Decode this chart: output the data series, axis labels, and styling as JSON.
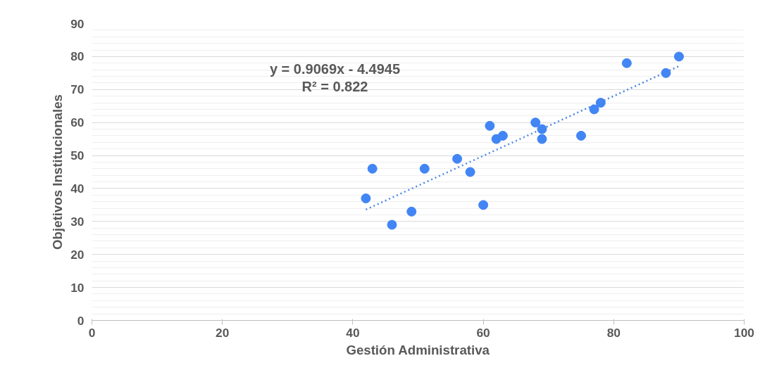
{
  "chart_data": {
    "type": "scatter",
    "xlabel": "Gestión Administrativa",
    "ylabel": "Objetivos Institucionales",
    "annotations": [
      "y = 0.9069x - 4.4945",
      "R² = 0.822"
    ],
    "x": [
      42,
      43,
      46,
      49,
      51,
      56,
      58,
      60,
      61,
      62,
      63,
      68,
      69,
      69,
      75,
      77,
      78,
      82,
      88,
      90
    ],
    "series": [
      {
        "color": "#4285f4",
        "marker": "circle",
        "values": [
          37,
          46,
          29,
          33,
          46,
          49,
          45,
          35,
          59,
          55,
          56,
          60,
          58,
          55,
          56,
          64,
          66,
          78,
          75,
          80
        ]
      },
      {
        "type": "line",
        "color": "#4a86e8",
        "line_style": "dotted",
        "marker": "none",
        "x": [
          42,
          90
        ],
        "values": [
          33.6,
          77.1
        ]
      }
    ],
    "xlim": [
      0,
      100
    ],
    "ylim": [
      0,
      90
    ],
    "xticks": [
      0,
      20,
      40,
      60,
      80,
      100
    ],
    "yticks": [
      0,
      10,
      20,
      30,
      40,
      50,
      60,
      70,
      80,
      90
    ],
    "grid": "y"
  }
}
